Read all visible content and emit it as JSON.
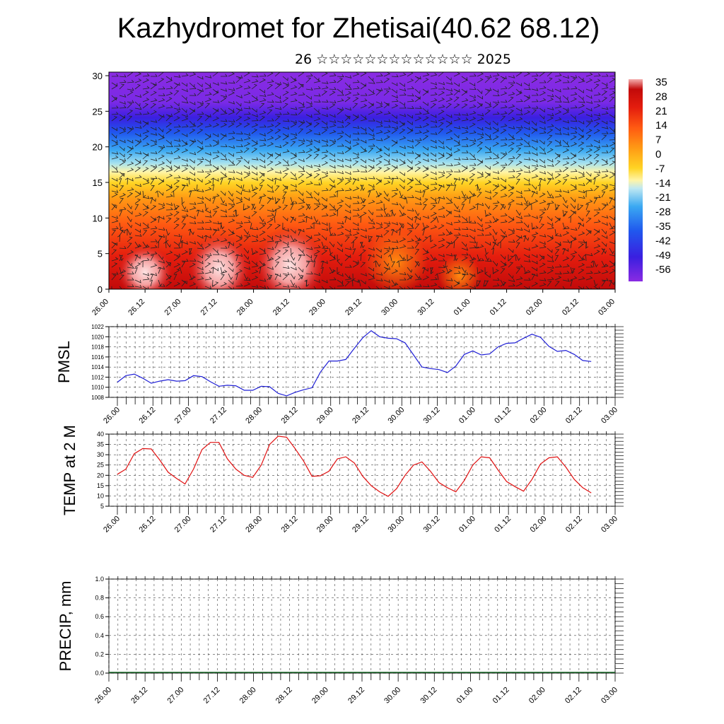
{
  "title": "Kazhydromet for Zhetisai(40.62 68.12)",
  "subtitle": "26 ☆☆☆☆☆☆☆☆☆☆☆☆☆ 2025",
  "chart_data": [
    {
      "type": "heatmap",
      "title": "",
      "yticks": [
        "0",
        "5",
        "10",
        "15",
        "20",
        "25",
        "30"
      ],
      "ylim": [
        0,
        30.5
      ],
      "xticks": [
        "26.00",
        "26.12",
        "27.00",
        "27.12",
        "28.00",
        "28.12",
        "29.00",
        "29.12",
        "30.00",
        "30.12",
        "01.00",
        "01.12",
        "02.00",
        "02.12",
        "03.00"
      ],
      "colorbar_labels": [
        "35",
        "28",
        "21",
        "14",
        "7",
        "0",
        "-7",
        "-14",
        "-21",
        "-28",
        "-35",
        "-42",
        "-49",
        "-56"
      ],
      "colors": [
        "#8a2be2",
        "#3b1fe0",
        "#1f5af0",
        "#32a0f0",
        "#9fdcf0",
        "#fff8b0",
        "#ffd21f",
        "#ff9c10",
        "#ff6010",
        "#e21c10",
        "#c80808",
        "#f5a0a0"
      ],
      "overlay": "wind barbs"
    },
    {
      "type": "line",
      "ylabel": "PMSL",
      "ylim": [
        1008,
        1022
      ],
      "yticks": [
        "1008",
        "1010",
        "1012",
        "1014",
        "1016",
        "1018",
        "1020",
        "1022"
      ],
      "xticks": [
        "26.00",
        "26.12",
        "27.00",
        "27.12",
        "28.00",
        "28.12",
        "29.00",
        "29.12",
        "30.00",
        "30.12",
        "01.00",
        "01.12",
        "02.00",
        "02.12",
        "03.00"
      ],
      "series": [
        {
          "color": "#1f1fd6",
          "values": [
            1011,
            1012.3,
            1012.6,
            1011.8,
            1010.8,
            1011.2,
            1011.5,
            1011.2,
            1011.3,
            1012.3,
            1012.1,
            1011.1,
            1010.2,
            1010.4,
            1010.3,
            1009.4,
            1009.4,
            1010.2,
            1010.1,
            1008.8,
            1008.3,
            1009.0,
            1009.5,
            1009.9,
            1013.0,
            1015.2,
            1015.2,
            1015.5,
            1017.7,
            1019.8,
            1021.2,
            1020.0,
            1019.7,
            1019.6,
            1018.8,
            1016.4,
            1014.0,
            1013.7,
            1013.5,
            1012.9,
            1014.2,
            1016.5,
            1017.2,
            1016.4,
            1016.6,
            1018.0,
            1018.7,
            1018.8,
            1019.7,
            1020.5,
            1019.9,
            1018.1,
            1017.1,
            1017.3,
            1016.5,
            1015.3,
            1015.1
          ]
        }
      ]
    },
    {
      "type": "line",
      "ylabel": "TEMP at 2 M",
      "ylim": [
        5,
        40
      ],
      "yticks": [
        "5",
        "10",
        "15",
        "20",
        "25",
        "30",
        "35",
        "40"
      ],
      "xticks": [
        "26.00",
        "26.12",
        "27.00",
        "27.12",
        "28.00",
        "28.12",
        "29.00",
        "29.12",
        "30.00",
        "30.12",
        "01.00",
        "01.12",
        "02.00",
        "02.12",
        "03.00"
      ],
      "series": [
        {
          "color": "#e01010",
          "values": [
            20.5,
            23,
            30.5,
            33,
            32.8,
            27.5,
            21.5,
            18.5,
            15.8,
            23,
            32.5,
            36,
            36,
            28,
            23,
            20,
            19,
            25,
            35,
            39,
            38.5,
            33,
            27,
            19.5,
            19.8,
            22,
            28,
            29,
            26,
            19.5,
            15,
            12,
            9.8,
            13.5,
            20,
            25,
            26.5,
            22,
            16.5,
            14,
            12,
            17.5,
            25,
            29,
            28.5,
            22.5,
            17,
            14.5,
            12.3,
            18,
            25.5,
            28.5,
            29,
            24,
            18,
            14,
            11.5
          ]
        }
      ]
    },
    {
      "type": "bar",
      "ylabel": "PRECIP, mm",
      "ylim": [
        0,
        1
      ],
      "yticks": [
        "0.0",
        "0.2",
        "0.4",
        "0.6",
        "0.8",
        "1.0"
      ],
      "xticks": [
        "26.00",
        "26.12",
        "27.00",
        "27.12",
        "28.00",
        "28.12",
        "29.00",
        "29.12",
        "30.00",
        "30.12",
        "01.00",
        "01.12",
        "02.00",
        "02.12",
        "03.00"
      ],
      "values": [
        0,
        0,
        0,
        0,
        0,
        0,
        0,
        0,
        0,
        0,
        0,
        0,
        0,
        0,
        0,
        0,
        0,
        0,
        0,
        0,
        0,
        0,
        0,
        0,
        0,
        0,
        0,
        0,
        0,
        0,
        0,
        0,
        0,
        0,
        0,
        0,
        0,
        0,
        0,
        0,
        0,
        0,
        0,
        0,
        0,
        0,
        0,
        0,
        0,
        0,
        0,
        0,
        0,
        0,
        0,
        0,
        0
      ]
    }
  ]
}
